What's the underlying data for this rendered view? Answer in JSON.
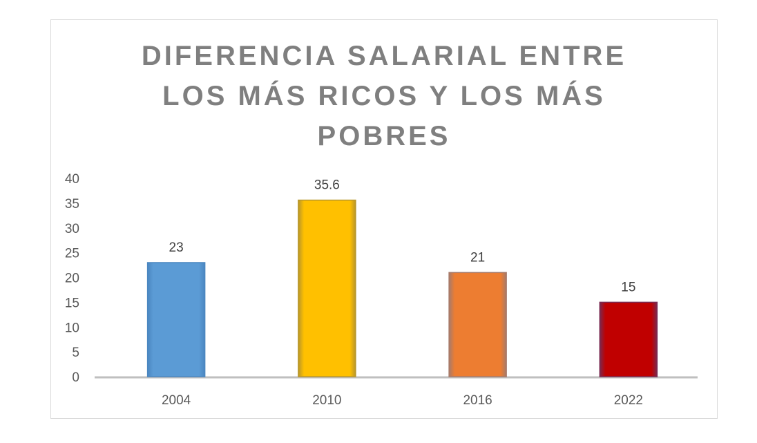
{
  "chart_data": {
    "type": "bar",
    "title_lines": [
      "DIFERENCIA SALARIAL ENTRE",
      "LOS MÁS RICOS Y LOS MÁS",
      "POBRES"
    ],
    "categories": [
      "2004",
      "2010",
      "2016",
      "2022"
    ],
    "values": [
      23,
      35.6,
      21,
      15
    ],
    "data_labels": [
      "23",
      "35.6",
      "21",
      "15"
    ],
    "colors": [
      "#5b9bd5",
      "#ffc000",
      "#ed7d31",
      "#c00000"
    ],
    "edge_colors": [
      "#4a86c0",
      "#b8962a",
      "#a77a6a",
      "#7a2a50"
    ],
    "yticks": [
      "0",
      "5",
      "10",
      "15",
      "20",
      "25",
      "30",
      "35",
      "40"
    ],
    "ylim": [
      0,
      40
    ],
    "xlabel": "",
    "ylabel": "",
    "grid": false,
    "legend": "none"
  }
}
